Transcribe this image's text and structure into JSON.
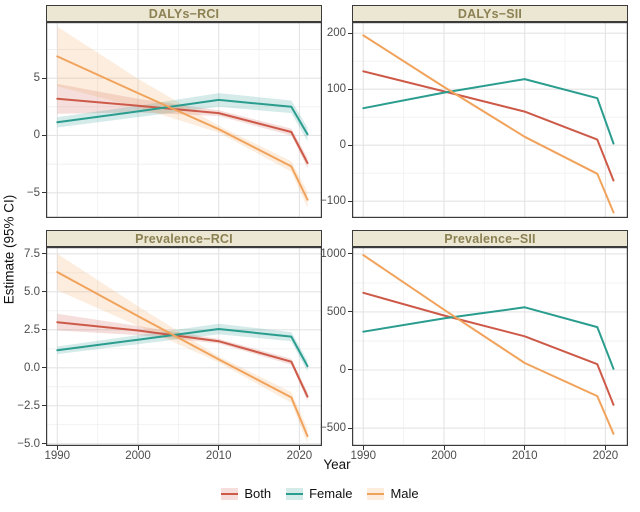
{
  "figure": {
    "x_axis_title": "Year",
    "y_axis_title": "Estimate (95% CI)"
  },
  "legend": {
    "items": [
      {
        "label": "Both",
        "color": "#cd5a49"
      },
      {
        "label": "Female",
        "color": "#2a9d8f"
      },
      {
        "label": "Male",
        "color": "#f1a35c"
      }
    ]
  },
  "style": {
    "strip_bg": "#ece7d3",
    "strip_text": "#8c8153",
    "panel_border": "#3b3b3b",
    "grid_major": "#e4e4e4",
    "grid_minor": "#f1f1f1",
    "tick_text": "#4d4d4d",
    "ribbon_opacity": 0.2
  },
  "chart_data": [
    {
      "type": "line",
      "title": "DALYs−RCI",
      "x": [
        1990,
        2000,
        2010,
        2019,
        2021
      ],
      "xlim": [
        1988.6,
        2022.8
      ],
      "ylim": [
        -7.2,
        9.9
      ],
      "xticks": [
        1990,
        2000,
        2010,
        2020
      ],
      "xtick_labels": [
        "1990",
        "2000",
        "2010",
        "2020"
      ],
      "xticks_minor": [
        1995,
        2005,
        2015
      ],
      "yticks": [
        5,
        0,
        -5
      ],
      "ytick_labels": [
        "5",
        "0",
        "−5"
      ],
      "yticks_minor": [
        7.5,
        2.5,
        -2.5
      ],
      "show_x_labels": false,
      "series": [
        {
          "name": "Both",
          "color": "#cd5a49",
          "values": [
            3.2,
            2.6,
            1.95,
            0.3,
            -2.4
          ],
          "ci_lower": [
            1.9,
            2.0,
            1.7,
            0.0,
            -2.85
          ],
          "ci_upper": [
            4.5,
            3.2,
            2.2,
            0.6,
            -1.95
          ]
        },
        {
          "name": "Female",
          "color": "#2a9d8f",
          "values": [
            1.15,
            2.1,
            3.1,
            2.5,
            0.1
          ],
          "ci_lower": [
            0.7,
            1.6,
            2.5,
            1.95,
            -0.5
          ],
          "ci_upper": [
            1.6,
            2.6,
            3.7,
            3.05,
            0.7
          ]
        },
        {
          "name": "Male",
          "color": "#f1a35c",
          "values": [
            6.9,
            3.7,
            0.55,
            -2.7,
            -5.6
          ],
          "ci_lower": [
            4.3,
            2.45,
            0.25,
            -3.15,
            -6.3
          ],
          "ci_upper": [
            9.5,
            4.95,
            0.85,
            -2.25,
            -4.9
          ]
        }
      ]
    },
    {
      "type": "line",
      "title": "DALYs−SII",
      "x": [
        1990,
        2000,
        2010,
        2019,
        2021
      ],
      "xlim": [
        1988.6,
        2022.8
      ],
      "ylim": [
        -130,
        220
      ],
      "xticks": [
        1990,
        2000,
        2010,
        2020
      ],
      "xtick_labels": [
        "1990",
        "2000",
        "2010",
        "2020"
      ],
      "xticks_minor": [
        1995,
        2005,
        2015
      ],
      "yticks": [
        200,
        100,
        0,
        -100
      ],
      "ytick_labels": [
        "200",
        "100",
        "0",
        "−100"
      ],
      "yticks_minor": [
        150,
        50,
        -50
      ],
      "show_x_labels": false,
      "series": [
        {
          "name": "Both",
          "color": "#cd5a49",
          "values": [
            132,
            96,
            60,
            10,
            -63
          ]
        },
        {
          "name": "Female",
          "color": "#2a9d8f",
          "values": [
            66,
            94,
            118,
            84,
            3
          ]
        },
        {
          "name": "Male",
          "color": "#f1a35c",
          "values": [
            196,
            104,
            15,
            -51,
            -120
          ]
        }
      ]
    },
    {
      "type": "line",
      "title": "Prevalence−RCI",
      "x": [
        1990,
        2000,
        2010,
        2019,
        2021
      ],
      "xlim": [
        1988.6,
        2022.8
      ],
      "ylim": [
        -5.15,
        7.95
      ],
      "xticks": [
        1990,
        2000,
        2010,
        2020
      ],
      "xtick_labels": [
        "1990",
        "2000",
        "2010",
        "2020"
      ],
      "xticks_minor": [
        1995,
        2005,
        2015
      ],
      "yticks": [
        7.5,
        5.0,
        2.5,
        0.0,
        -2.5,
        -5.0
      ],
      "ytick_labels": [
        "7.5",
        "5.0",
        "2.5",
        "0.0",
        "−2.5",
        "−5.0"
      ],
      "yticks_minor": [
        6.25,
        3.75,
        1.25,
        -1.25,
        -3.75
      ],
      "show_x_labels": true,
      "series": [
        {
          "name": "Both",
          "color": "#cd5a49",
          "values": [
            3.0,
            2.45,
            1.75,
            0.4,
            -1.9
          ],
          "ci_lower": [
            2.45,
            2.15,
            1.6,
            0.2,
            -2.2
          ],
          "ci_upper": [
            3.55,
            2.75,
            1.9,
            0.6,
            -1.6
          ]
        },
        {
          "name": "Female",
          "color": "#2a9d8f",
          "values": [
            1.15,
            1.85,
            2.55,
            2.05,
            0.1
          ],
          "ci_lower": [
            0.9,
            1.55,
            2.2,
            1.75,
            -0.25
          ],
          "ci_upper": [
            1.4,
            2.15,
            2.9,
            2.35,
            0.45
          ]
        },
        {
          "name": "Male",
          "color": "#f1a35c",
          "values": [
            6.3,
            3.4,
            0.55,
            -1.95,
            -4.5
          ],
          "ci_lower": [
            5.1,
            2.75,
            0.35,
            -2.3,
            -5.0
          ],
          "ci_upper": [
            7.5,
            4.05,
            0.75,
            -1.6,
            -4.0
          ]
        }
      ]
    },
    {
      "type": "line",
      "title": "Prevalence−SII",
      "x": [
        1990,
        2000,
        2010,
        2019,
        2021
      ],
      "xlim": [
        1988.6,
        2022.8
      ],
      "ylim": [
        -655,
        1060
      ],
      "xticks": [
        1990,
        2000,
        2010,
        2020
      ],
      "xtick_labels": [
        "1990",
        "2000",
        "2010",
        "2020"
      ],
      "xticks_minor": [
        1995,
        2005,
        2015
      ],
      "yticks": [
        1000,
        500,
        0,
        -500
      ],
      "ytick_labels": [
        "1000",
        "500",
        "0",
        "−500"
      ],
      "yticks_minor": [
        750,
        250,
        -250
      ],
      "show_x_labels": true,
      "series": [
        {
          "name": "Both",
          "color": "#cd5a49",
          "values": [
            665,
            470,
            290,
            50,
            -300
          ]
        },
        {
          "name": "Female",
          "color": "#2a9d8f",
          "values": [
            330,
            445,
            540,
            370,
            10
          ]
        },
        {
          "name": "Male",
          "color": "#f1a35c",
          "values": [
            990,
            520,
            60,
            -225,
            -550
          ]
        }
      ]
    }
  ]
}
